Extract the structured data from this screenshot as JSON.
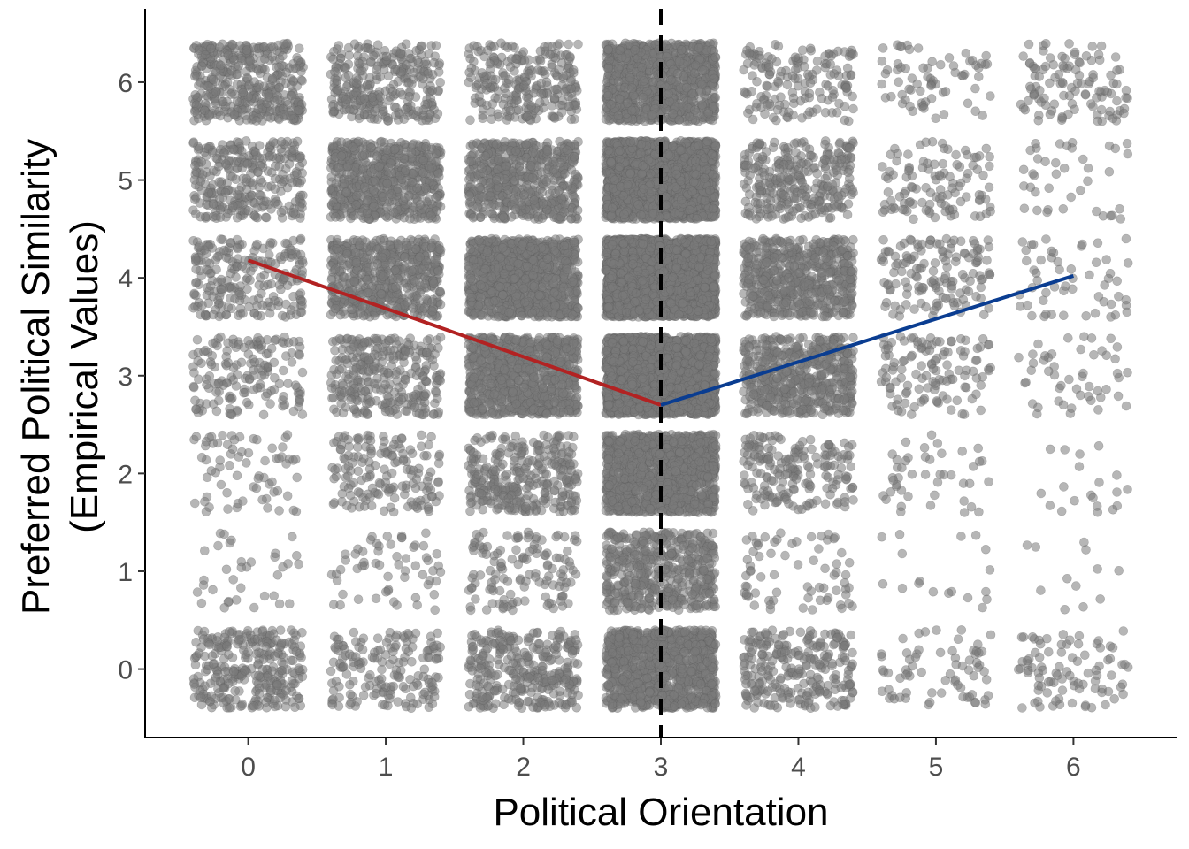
{
  "chart_data": {
    "type": "scatter",
    "xlabel": "Political Orientation",
    "ylabel_lines": [
      "Preferred Political Similarity",
      "(Empirical Values)"
    ],
    "x_ticks": [
      "0",
      "1",
      "2",
      "3",
      "4",
      "5",
      "6"
    ],
    "y_ticks": [
      "0",
      "1",
      "2",
      "3",
      "4",
      "5",
      "6"
    ],
    "xlim": [
      -0.75,
      6.75
    ],
    "ylim": [
      -0.7,
      6.75
    ],
    "grid": false,
    "jitter": 0.4,
    "point_color": "#7a7a7a",
    "point_alpha": 0.55,
    "point_counts": {
      "comment": "",
      "rows": [
        [
          300,
          170,
          320,
          1000,
          260,
          70,
          90
        ],
        [
          35,
          60,
          130,
          500,
          70,
          18,
          12
        ],
        [
          70,
          160,
          320,
          1200,
          190,
          45,
          20
        ],
        [
          160,
          300,
          900,
          2200,
          550,
          120,
          50
        ],
        [
          230,
          600,
          1100,
          2600,
          600,
          140,
          55
        ],
        [
          300,
          650,
          600,
          1800,
          300,
          110,
          40
        ],
        [
          420,
          300,
          260,
          1000,
          160,
          70,
          110
        ]
      ]
    },
    "reference_line": {
      "x": 3,
      "style": "dashed",
      "color": "#000000"
    },
    "series": [
      {
        "segment": "left",
        "x": [
          0,
          3
        ],
        "y": [
          4.18,
          2.7
        ],
        "color": "#b22222"
      },
      {
        "segment": "right",
        "x": [
          3,
          6
        ],
        "y": [
          2.7,
          4.02
        ],
        "color": "#0a3d91"
      }
    ]
  }
}
